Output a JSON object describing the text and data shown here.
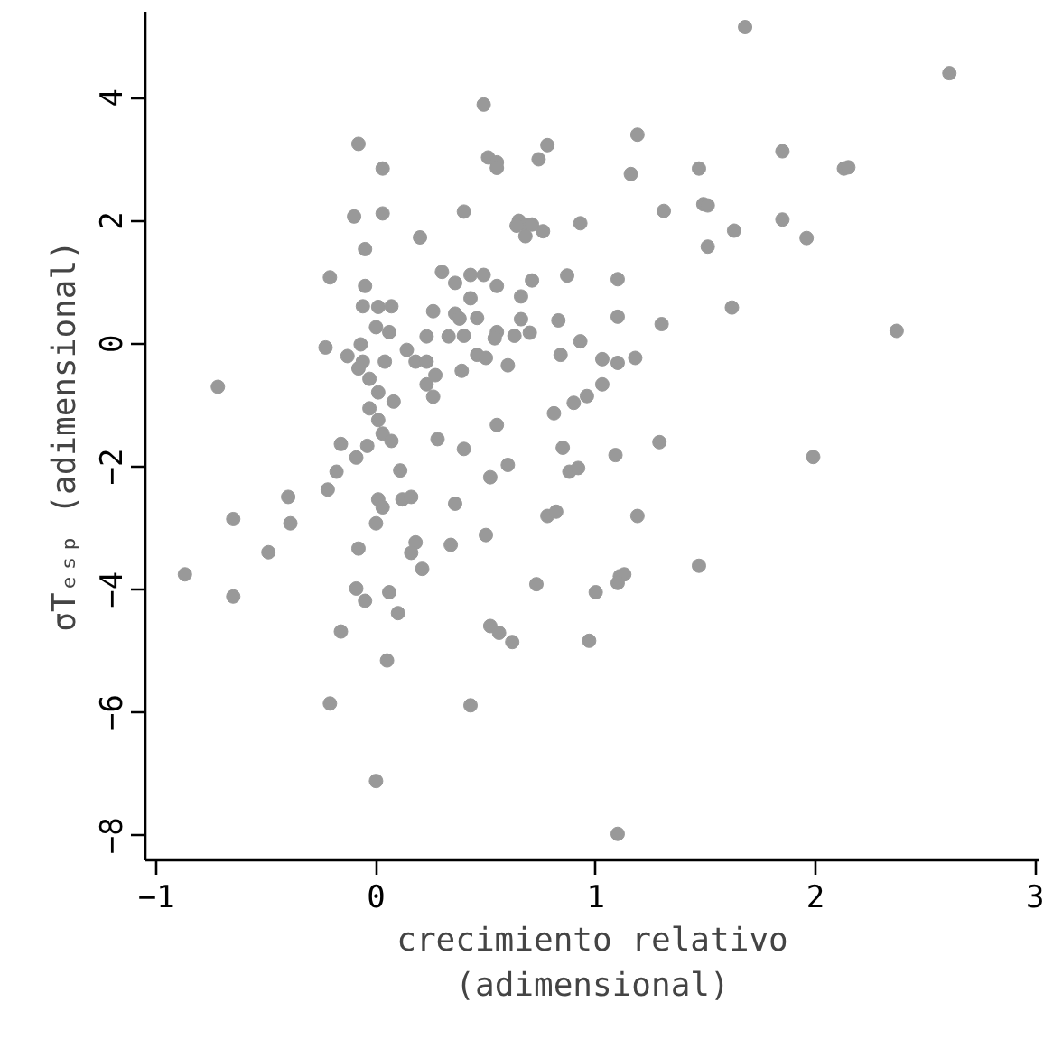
{
  "chart_data": {
    "type": "scatter",
    "xlabel": "crecimiento relativo\n(adimensional)",
    "ylabel": "σTₑₛₚ (adimensional)",
    "xlim": [
      -1.05,
      3.02
    ],
    "ylim": [
      -8.4,
      5.4
    ],
    "xticks": [
      -1,
      0,
      1,
      2,
      3
    ],
    "yticks": [
      -8,
      -6,
      -4,
      -2,
      0,
      2,
      4
    ],
    "grid": false,
    "marker": "circle",
    "series": [
      {
        "color": "#999999",
        "x": [
          1.68,
          2.61,
          0.49,
          -0.08,
          0.03,
          0.51,
          0.55,
          0.55,
          0.74,
          0.78,
          1.19,
          1.16,
          1.47,
          1.85,
          2.13,
          2.15,
          -0.1,
          0.03,
          0.4,
          0.2,
          -0.05,
          0.65,
          0.68,
          0.71,
          0.68,
          0.76,
          0.64,
          0.93,
          1.31,
          1.49,
          1.51,
          1.85,
          1.96,
          1.63,
          1.51,
          -0.21,
          -0.05,
          0.3,
          0.36,
          0.43,
          0.49,
          0.55,
          0.71,
          0.87,
          1.1,
          0.43,
          0.66,
          -0.06,
          0.01,
          0.07,
          0.26,
          0.36,
          0.38,
          0.46,
          0.66,
          0.83,
          1.1,
          1.3,
          1.62,
          2.37,
          0.0,
          0.06,
          0.23,
          0.33,
          0.4,
          0.55,
          0.54,
          0.63,
          0.7,
          0.93,
          -0.23,
          -0.07,
          -0.13,
          -0.06,
          0.04,
          0.14,
          0.18,
          0.23,
          0.46,
          0.5,
          0.6,
          0.84,
          1.03,
          1.1,
          1.18,
          -0.08,
          -0.03,
          0.39,
          0.27,
          0.23,
          0.26,
          0.08,
          0.01,
          1.03,
          0.96,
          0.9,
          -0.03,
          0.81,
          0.55,
          0.01,
          0.03,
          0.07,
          -0.16,
          0.28,
          -0.04,
          -0.09,
          0.4,
          0.85,
          1.29,
          1.09,
          1.99,
          -0.18,
          0.11,
          0.6,
          0.52,
          0.88,
          0.92,
          -0.22,
          -0.4,
          0.01,
          0.03,
          0.12,
          0.16,
          0.36,
          -0.65,
          -0.39,
          0.0,
          0.78,
          0.82,
          1.19,
          0.5,
          0.18,
          0.34,
          -0.08,
          0.16,
          -0.49,
          0.21,
          1.47,
          -0.87,
          1.11,
          1.13,
          1.1,
          0.73,
          -0.09,
          -0.05,
          0.06,
          -0.65,
          1.0,
          0.1,
          -0.16,
          0.52,
          0.56,
          0.62,
          0.97,
          0.05,
          -0.21,
          0.43,
          0.0,
          1.1,
          -0.72
        ],
        "values": [
          5.15,
          4.4,
          3.89,
          3.25,
          2.85,
          3.03,
          2.95,
          2.86,
          3.0,
          3.23,
          3.4,
          2.76,
          2.85,
          3.13,
          2.85,
          2.87,
          2.07,
          2.12,
          2.15,
          1.73,
          1.54,
          2.0,
          1.94,
          1.94,
          1.75,
          1.83,
          1.92,
          1.96,
          2.16,
          2.27,
          2.25,
          2.02,
          1.72,
          1.84,
          1.58,
          1.08,
          0.94,
          1.17,
          0.99,
          1.12,
          1.12,
          0.94,
          1.03,
          1.11,
          1.05,
          0.74,
          0.77,
          0.61,
          0.6,
          0.61,
          0.53,
          0.49,
          0.41,
          0.42,
          0.4,
          0.38,
          0.44,
          0.32,
          0.59,
          0.21,
          0.27,
          0.19,
          0.12,
          0.12,
          0.13,
          0.19,
          0.09,
          0.13,
          0.18,
          0.04,
          -0.06,
          -0.01,
          -0.2,
          -0.29,
          -0.29,
          -0.1,
          -0.29,
          -0.29,
          -0.18,
          -0.23,
          -0.35,
          -0.18,
          -0.25,
          -0.31,
          -0.23,
          -0.4,
          -0.57,
          -0.44,
          -0.51,
          -0.66,
          -0.86,
          -0.94,
          -0.79,
          -0.66,
          -0.85,
          -0.96,
          -1.05,
          -1.13,
          -1.32,
          -1.24,
          -1.46,
          -1.58,
          -1.63,
          -1.55,
          -1.66,
          -1.85,
          -1.71,
          -1.69,
          -1.6,
          -1.81,
          -1.84,
          -2.08,
          -2.06,
          -1.97,
          -2.17,
          -2.08,
          -2.02,
          -2.37,
          -2.49,
          -2.53,
          -2.66,
          -2.53,
          -2.49,
          -2.6,
          -2.85,
          -2.92,
          -2.92,
          -2.8,
          -2.73,
          -2.8,
          -3.11,
          -3.23,
          -3.27,
          -3.33,
          -3.4,
          -3.39,
          -3.66,
          -3.61,
          -3.75,
          -3.78,
          -3.75,
          -3.89,
          -3.91,
          -3.98,
          -4.18,
          -4.04,
          -4.11,
          -4.04,
          -4.38,
          -4.68,
          -4.59,
          -4.7,
          -4.85,
          -4.83,
          -5.15,
          -5.85,
          -5.88,
          -7.11,
          -7.97,
          -0.7
        ]
      }
    ]
  }
}
